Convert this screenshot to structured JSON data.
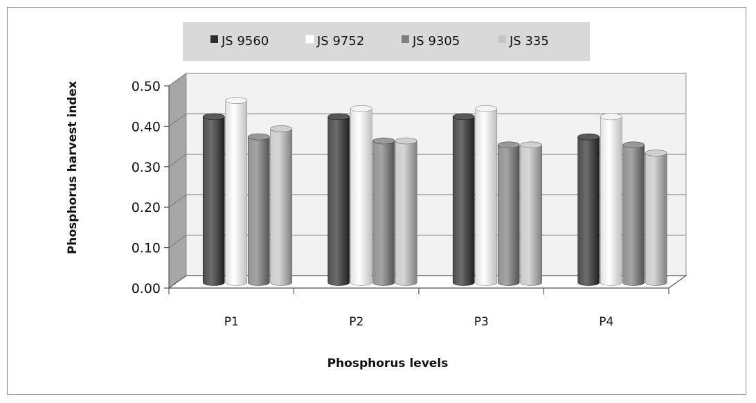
{
  "chart_data": {
    "type": "bar",
    "style": "3d-clustered-column",
    "categories": [
      "P1",
      "P2",
      "P3",
      "P4"
    ],
    "series": [
      {
        "name": "JS 9560",
        "values": [
          0.41,
          0.41,
          0.41,
          0.36
        ],
        "color": "#2f2f2f"
      },
      {
        "name": "JS 9752",
        "values": [
          0.45,
          0.43,
          0.43,
          0.41
        ],
        "color": "#ffffff"
      },
      {
        "name": "JS 9305",
        "values": [
          0.36,
          0.35,
          0.34,
          0.34
        ],
        "color": "#7f7f7f"
      },
      {
        "name": "JS 335",
        "values": [
          0.38,
          0.35,
          0.34,
          0.32
        ],
        "color": "#c4c4c4"
      }
    ],
    "title": "",
    "xlabel": "Phosphorus levels",
    "ylabel": "Phosphorus harvest index",
    "ylim": [
      0,
      0.5
    ],
    "yticks": [
      "0.00",
      "0.10",
      "0.20",
      "0.30",
      "0.40",
      "0.50"
    ],
    "ytick_values": [
      0,
      0.1,
      0.2,
      0.3,
      0.4,
      0.5
    ],
    "grid": true,
    "legend_position": "top-center",
    "colors": {
      "plot_back": "#f2f2f2",
      "side_wall": "#a6a6a6",
      "floor": "#ffffff",
      "legend_bg": "#d9d9d9",
      "grid": "#7f7f7f"
    }
  }
}
